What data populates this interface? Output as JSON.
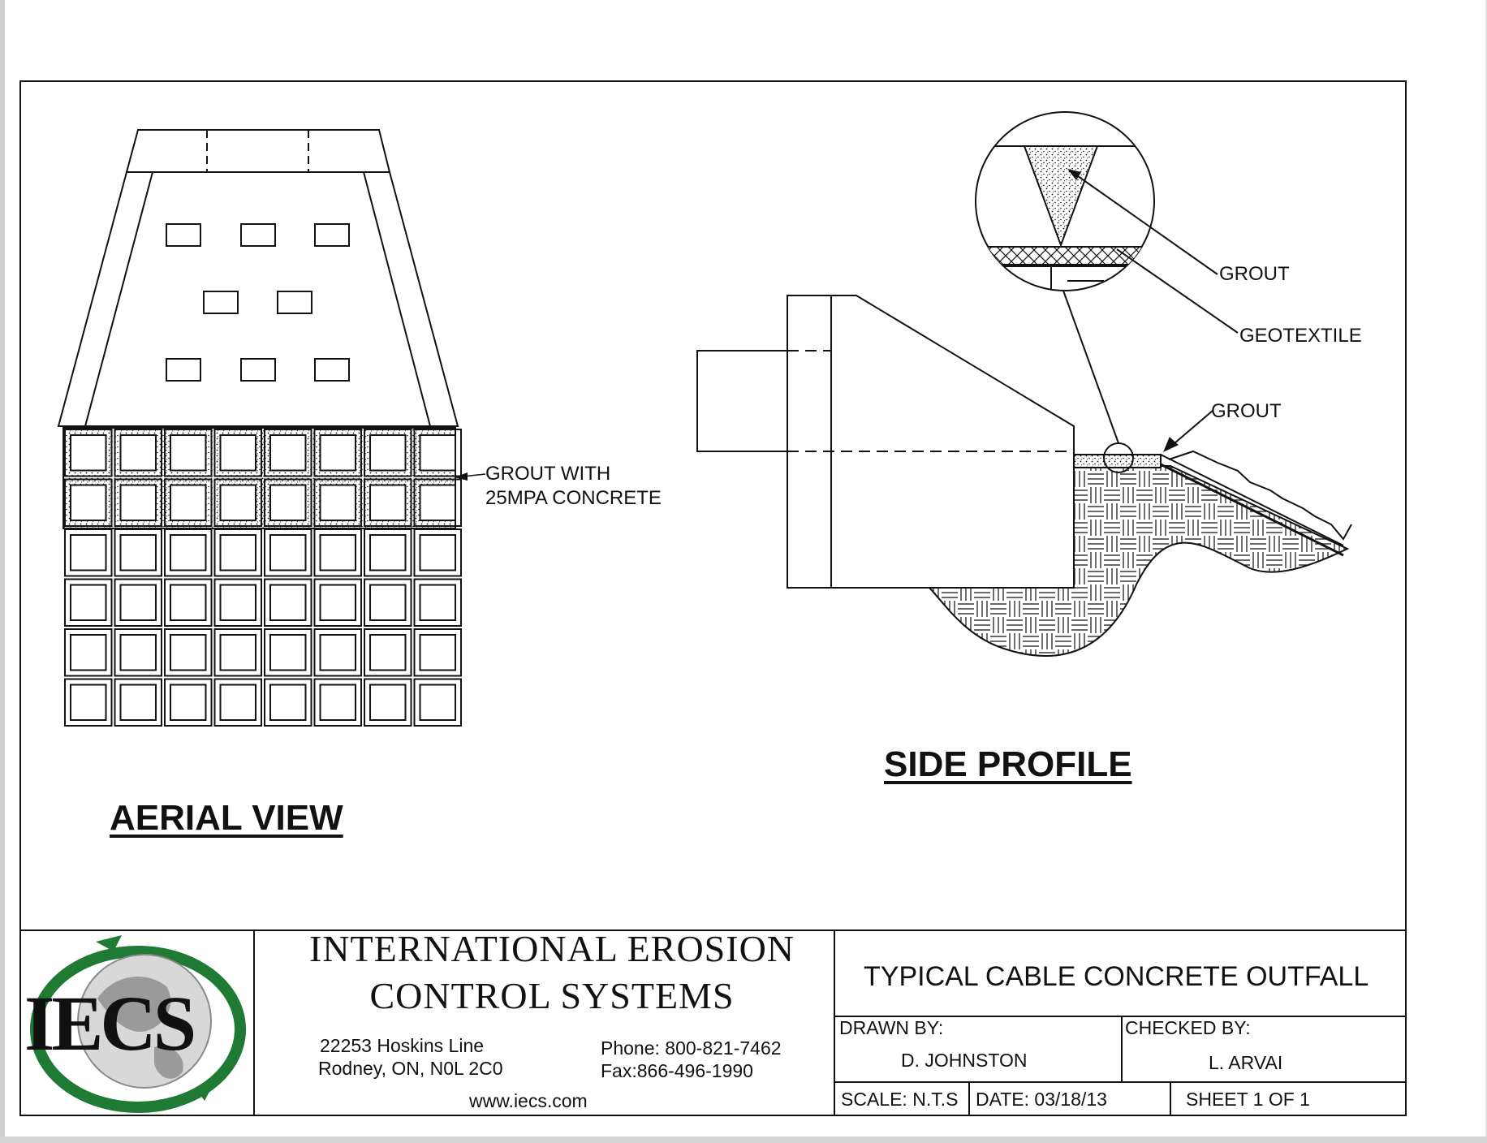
{
  "aerial": {
    "title": "AERIAL VIEW",
    "callout_line1": "GROUT WITH",
    "callout_line2": "25MPA CONCRETE"
  },
  "side": {
    "title": "SIDE PROFILE",
    "callout_grout_top": "GROUT",
    "callout_geotextile": "GEOTEXTILE",
    "callout_grout_lower": "GROUT"
  },
  "company": {
    "logo": "IECS",
    "name_line1": "INTERNATIONAL EROSION",
    "name_line2": "CONTROL SYSTEMS",
    "address_line1": "22253 Hoskins Line",
    "address_line2": "Rodney, ON, N0L 2C0",
    "phone": "Phone: 800-821-7462",
    "fax": "Fax:866-496-1990",
    "website": "www.iecs.com"
  },
  "title_block": {
    "title": "TYPICAL CABLE CONCRETE OUTFALL",
    "drawn_by_label": "DRAWN BY:",
    "drawn_by": "D. JOHNSTON",
    "checked_by_label": "CHECKED BY:",
    "checked_by": "L. ARVAI",
    "scale": "SCALE: N.T.S",
    "date": "DATE:   03/18/13",
    "sheet": "SHEET 1 OF 1"
  },
  "colors": {
    "line": "#111111",
    "logo_green": "#1f7a34",
    "logo_globe": "#8a8a8a"
  }
}
